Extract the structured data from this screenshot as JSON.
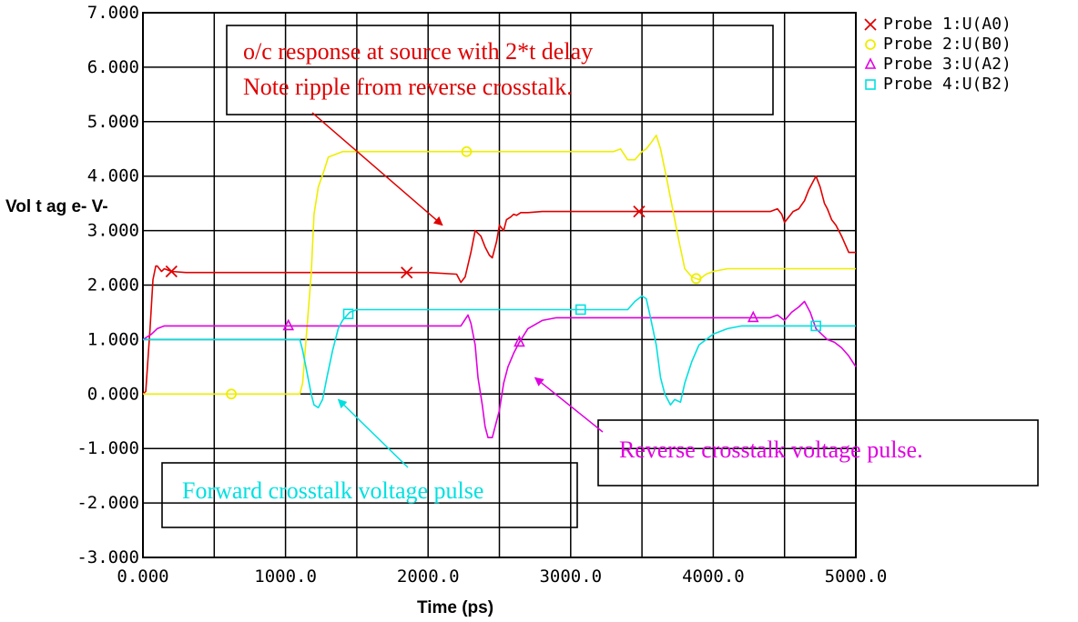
{
  "chart_data": {
    "type": "line",
    "title": "",
    "xlabel": "Time  (ps)",
    "ylabel": "Vol t ag e- V-",
    "xlim": [
      0,
      5000
    ],
    "ylim": [
      -3,
      7
    ],
    "x_ticks": [
      "0.000",
      "1000.0",
      "2000.0",
      "3000.0",
      "4000.0",
      "5000.0"
    ],
    "x_tick_values": [
      0,
      1000,
      2000,
      3000,
      4000,
      5000
    ],
    "y_ticks": [
      "-3.000",
      "-2.000",
      "-1.000",
      "0.000",
      "1.000",
      "2.000",
      "3.000",
      "4.000",
      "5.000",
      "6.000",
      "7.000"
    ],
    "y_tick_values": [
      -3,
      -2,
      -1,
      0,
      1,
      2,
      3,
      4,
      5,
      6,
      7
    ],
    "grid": true,
    "legend_position": "top-right",
    "series": [
      {
        "name": "Probe 1:U(A0)",
        "color": "#e00000",
        "marker": "x",
        "marker_x": [
          200,
          1850,
          3480
        ],
        "x": [
          0,
          20,
          50,
          70,
          90,
          100,
          130,
          150,
          200,
          300,
          1000,
          2000,
          2200,
          2230,
          2260,
          2300,
          2330,
          2370,
          2400,
          2430,
          2450,
          2480,
          2500,
          2530,
          2550,
          2580,
          2600,
          2620,
          2650,
          2700,
          2800,
          3500,
          4400,
          4450,
          4480,
          4500,
          4530,
          4560,
          4600,
          4640,
          4670,
          4700,
          4720,
          4750,
          4780,
          4800,
          4830,
          4860,
          4900,
          4950,
          5000
        ],
        "y": [
          0,
          0.05,
          1.2,
          2.1,
          2.35,
          2.35,
          2.25,
          2.3,
          2.25,
          2.23,
          2.23,
          2.23,
          2.2,
          2.05,
          2.15,
          2.6,
          3.0,
          2.9,
          2.7,
          2.55,
          2.5,
          2.8,
          3.1,
          3.0,
          3.2,
          3.25,
          3.3,
          3.28,
          3.33,
          3.33,
          3.35,
          3.35,
          3.35,
          3.4,
          3.3,
          3.15,
          3.25,
          3.35,
          3.4,
          3.55,
          3.75,
          3.9,
          4.0,
          3.8,
          3.5,
          3.4,
          3.2,
          3.1,
          2.9,
          2.6,
          2.6
        ]
      },
      {
        "name": "Probe 2:U(B0)",
        "color": "#eeee00",
        "marker": "circle",
        "marker_x": [
          620,
          2270,
          3880
        ],
        "x": [
          0,
          1100,
          1120,
          1150,
          1180,
          1200,
          1230,
          1270,
          1300,
          1350,
          1400,
          1450,
          1500,
          1550,
          2000,
          3000,
          3300,
          3350,
          3400,
          3450,
          3500,
          3530,
          3560,
          3600,
          3630,
          3670,
          3700,
          3730,
          3760,
          3800,
          3850,
          3900,
          3950,
          4000,
          4100,
          4500,
          5000
        ],
        "y": [
          0,
          0,
          0.2,
          1.2,
          2.2,
          3.3,
          3.8,
          4.1,
          4.35,
          4.4,
          4.45,
          4.45,
          4.45,
          4.45,
          4.45,
          4.45,
          4.45,
          4.5,
          4.3,
          4.3,
          4.45,
          4.5,
          4.6,
          4.75,
          4.5,
          4.0,
          3.6,
          3.2,
          2.8,
          2.3,
          2.15,
          2.1,
          2.2,
          2.25,
          2.3,
          2.3,
          2.3
        ]
      },
      {
        "name": "Probe 3:U(A2)",
        "color": "#e000e0",
        "marker": "triangle",
        "marker_x": [
          1020,
          2640,
          4280
        ],
        "x": [
          0,
          30,
          60,
          100,
          150,
          200,
          300,
          1000,
          2000,
          2230,
          2280,
          2300,
          2330,
          2350,
          2380,
          2400,
          2420,
          2450,
          2470,
          2500,
          2530,
          2560,
          2600,
          2640,
          2700,
          2800,
          2900,
          3000,
          3500,
          4000,
          4400,
          4450,
          4500,
          4550,
          4600,
          4640,
          4680,
          4720,
          4760,
          4800,
          4850,
          4900,
          4950,
          5000
        ],
        "y": [
          1.0,
          1.05,
          1.1,
          1.2,
          1.25,
          1.25,
          1.25,
          1.25,
          1.25,
          1.25,
          1.45,
          1.3,
          0.9,
          0.3,
          -0.2,
          -0.6,
          -0.8,
          -0.8,
          -0.6,
          -0.3,
          0.2,
          0.5,
          0.75,
          0.95,
          1.2,
          1.35,
          1.4,
          1.4,
          1.4,
          1.4,
          1.4,
          1.45,
          1.35,
          1.5,
          1.6,
          1.7,
          1.5,
          1.2,
          1.1,
          1.0,
          0.95,
          0.85,
          0.7,
          0.5
        ]
      },
      {
        "name": "Probe 4:U(B2)",
        "color": "#00e0e0",
        "marker": "square",
        "marker_x": [
          1440,
          3070,
          4720
        ],
        "x": [
          0,
          1000,
          1100,
          1120,
          1150,
          1180,
          1200,
          1230,
          1260,
          1290,
          1330,
          1370,
          1400,
          1450,
          1500,
          1600,
          2000,
          3000,
          3400,
          3450,
          3500,
          3530,
          3560,
          3600,
          3630,
          3660,
          3700,
          3730,
          3770,
          3800,
          3850,
          3900,
          4000,
          4100,
          4200,
          4500,
          5000
        ],
        "y": [
          1.0,
          1.0,
          1.0,
          0.8,
          0.4,
          0.0,
          -0.2,
          -0.25,
          -0.1,
          0.3,
          0.8,
          1.2,
          1.35,
          1.5,
          1.55,
          1.55,
          1.55,
          1.55,
          1.55,
          1.7,
          1.8,
          1.75,
          1.4,
          0.9,
          0.3,
          0.0,
          -0.2,
          -0.1,
          -0.15,
          0.2,
          0.6,
          0.9,
          1.1,
          1.2,
          1.25,
          1.25,
          1.25
        ]
      }
    ],
    "annotations": [
      {
        "lines": [
          "o/c response at source with 2*t delay",
          "Note ripple from reverse crosstalk."
        ],
        "color": "#e00000",
        "arrow_to": [
          2100,
          3.1
        ]
      },
      {
        "lines": [
          "Reverse crosstalk voltage pulse."
        ],
        "color": "#e000e0",
        "arrow_to": [
          2750,
          0.3
        ]
      },
      {
        "lines": [
          "Forward crosstalk voltage pulse"
        ],
        "color": "#00e0e0",
        "arrow_to": [
          1370,
          -0.1
        ]
      }
    ]
  }
}
